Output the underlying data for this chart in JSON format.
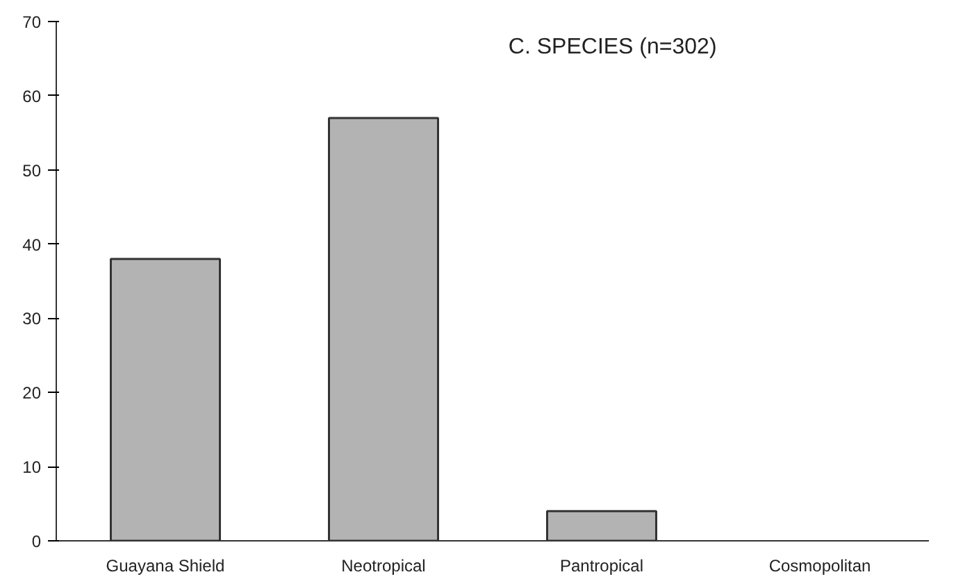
{
  "chart_data": {
    "type": "bar",
    "title": "C. SPECIES (n=302)",
    "categories": [
      "Guayana Shield",
      "Neotropical",
      "Pantropical",
      "Cosmopolitan"
    ],
    "values": [
      38,
      57,
      4,
      0
    ],
    "color": "#b3b3b3",
    "ylim": [
      0,
      70
    ],
    "yticks": [
      0,
      10,
      20,
      30,
      40,
      50,
      60,
      70
    ],
    "grid": false
  }
}
